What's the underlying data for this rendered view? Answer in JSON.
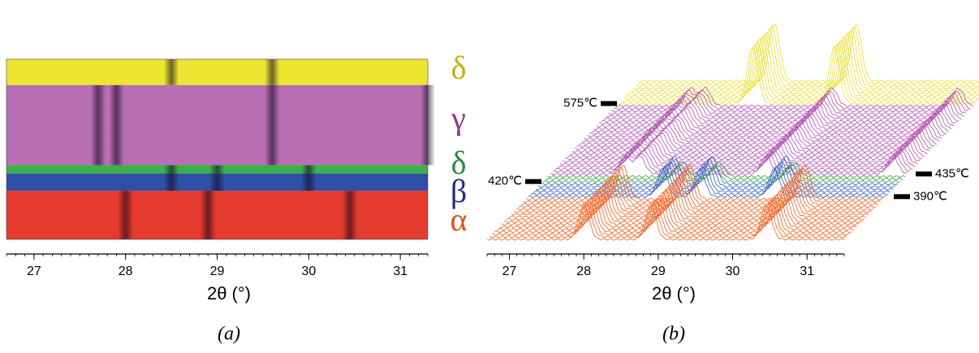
{
  "chart_data": [
    {
      "type": "phase-map",
      "xlabel": "2θ (°)",
      "caption": "(a)",
      "xlim": [
        26.7,
        31.3
      ],
      "xticks": [
        27,
        28,
        29,
        30,
        31
      ],
      "xminor_step": 0.1,
      "ylim": [
        305,
        620
      ],
      "phases": [
        {
          "name": "α",
          "color": "#e53a2e",
          "label_color": "#d9531e",
          "line_color": "#f0601e",
          "peaks": [
            28.0,
            28.9,
            30.45
          ]
        },
        {
          "name": "β",
          "color": "#2f4fa8",
          "label_color": "#2a2a80",
          "line_color": "#3060c0",
          "peaks": [
            28.5,
            29.0,
            30.0
          ]
        },
        {
          "name": "δ",
          "color": "#3cb04a",
          "label_color": "#2a8a40",
          "line_color": "#30a040",
          "peaks": [
            28.5,
            29.0,
            30.0
          ]
        },
        {
          "name": "γ",
          "color": "#b96fb3",
          "label_color": "#8a3a8a",
          "line_color": "#b050b0",
          "peaks": [
            27.7,
            27.9,
            29.6,
            31.3
          ]
        },
        {
          "name": "δ",
          "color": "#ece632",
          "label_color": "#c8b000",
          "line_color": "#e8e030",
          "peaks": [
            28.5,
            29.6
          ]
        }
      ]
    },
    {
      "type": "waterfall",
      "xlabel": "2θ (°)",
      "caption": "(b)",
      "xlim": [
        26.7,
        31.5
      ],
      "xticks": [
        27,
        28,
        29,
        30,
        31
      ],
      "xminor_step": 0.1,
      "row_step": 5,
      "markers": [
        {
          "value": 390,
          "label": "390℃",
          "side": "right"
        },
        {
          "value": 420,
          "label": "420℃",
          "side": "left"
        },
        {
          "value": 435,
          "label": "435℃",
          "side": "right"
        },
        {
          "value": 575,
          "label": "575℃",
          "side": "left"
        }
      ]
    }
  ]
}
